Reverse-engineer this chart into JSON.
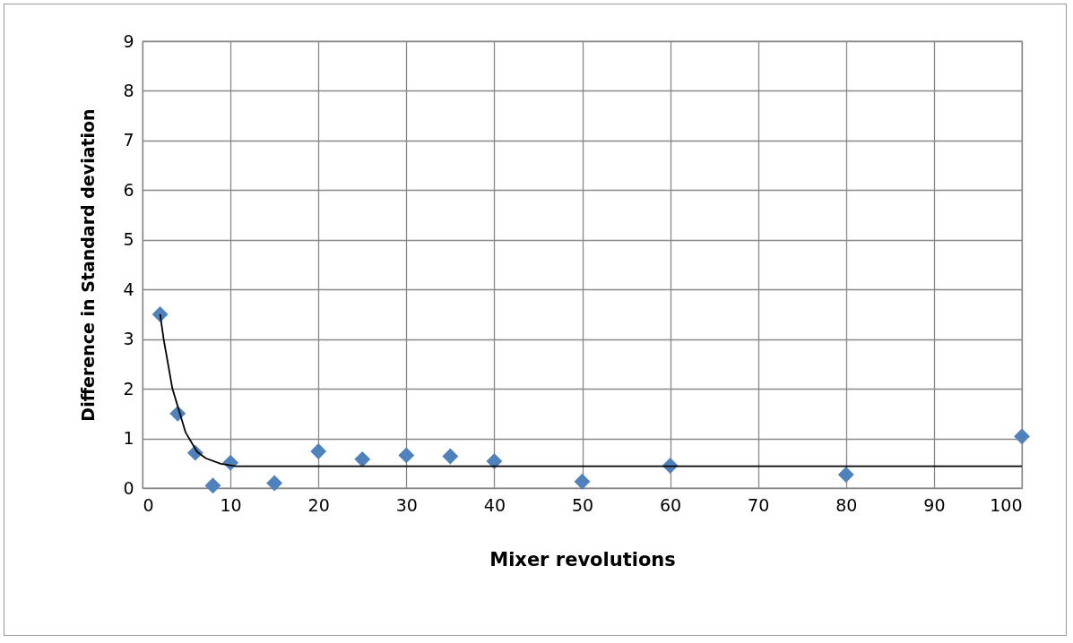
{
  "chart_data": {
    "type": "scatter",
    "xlabel": "Mixer revolutions",
    "ylabel": "Difference in Standard deviation",
    "xlim": [
      0,
      100
    ],
    "xticks": [
      0,
      10,
      20,
      30,
      40,
      50,
      60,
      70,
      80,
      90,
      100
    ],
    "ylim": [
      0,
      9
    ],
    "yticks": [
      0,
      1,
      2,
      3,
      4,
      5,
      6,
      7,
      8,
      9
    ],
    "grid": true,
    "series": [
      {
        "marker": "diamond",
        "color": "#4f81bd",
        "x": [
          2,
          4,
          6,
          8,
          10,
          15,
          20,
          25,
          30,
          35,
          40,
          50,
          60,
          80,
          100
        ],
        "values": [
          3.5,
          1.5,
          0.71,
          0.05,
          0.51,
          0.1,
          0.74,
          0.58,
          0.66,
          0.64,
          0.54,
          0.13,
          0.45,
          0.27,
          1.04
        ]
      },
      {
        "type": "line",
        "marker": "none",
        "color": "#000000",
        "line_style": "solid",
        "x": [
          2,
          2.4,
          3.4,
          4.9,
          6.2,
          7.2,
          8.9,
          10.6,
          100
        ],
        "values": [
          3.5,
          3,
          2,
          1.12,
          0.73,
          0.6,
          0.49,
          0.44,
          0.44
        ]
      }
    ]
  }
}
